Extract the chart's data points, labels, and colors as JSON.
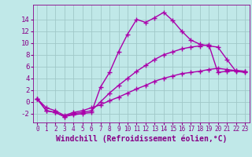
{
  "title": "",
  "xlabel": "Windchill (Refroidissement éolien,°C)",
  "ylabel": "",
  "bg_color": "#c0e8e8",
  "line_color": "#aa00aa",
  "grid_color": "#a0c8c8",
  "text_color": "#880088",
  "xlim": [
    -0.5,
    23.5
  ],
  "ylim": [
    -3.5,
    16.5
  ],
  "xticks": [
    0,
    1,
    2,
    3,
    4,
    5,
    6,
    7,
    8,
    9,
    10,
    11,
    12,
    13,
    14,
    15,
    16,
    17,
    18,
    19,
    20,
    21,
    22,
    23
  ],
  "yticks": [
    -2,
    0,
    2,
    4,
    6,
    8,
    10,
    12,
    14
  ],
  "line1_x": [
    0,
    1,
    2,
    3,
    4,
    5,
    6,
    7,
    8,
    9,
    10,
    11,
    12,
    13,
    14,
    15,
    16,
    17,
    18,
    19,
    20,
    21,
    22,
    23
  ],
  "line1_y": [
    0.5,
    -1.5,
    -1.8,
    -2.5,
    -2.2,
    -2.0,
    -1.8,
    2.5,
    5.0,
    8.5,
    11.5,
    14.0,
    13.5,
    14.3,
    15.2,
    13.8,
    12.0,
    10.5,
    9.8,
    9.5,
    9.3,
    7.2,
    5.2,
    5.0
  ],
  "line2_x": [
    0,
    1,
    2,
    3,
    4,
    5,
    6,
    7,
    8,
    9,
    10,
    11,
    12,
    13,
    14,
    15,
    16,
    17,
    18,
    19,
    20,
    21,
    22,
    23
  ],
  "line2_y": [
    0.5,
    -1.5,
    -1.8,
    -2.5,
    -2.0,
    -1.8,
    -1.5,
    0.0,
    1.5,
    2.8,
    4.0,
    5.2,
    6.2,
    7.2,
    8.0,
    8.5,
    9.0,
    9.3,
    9.5,
    9.7,
    5.0,
    5.2,
    5.3,
    5.2
  ],
  "line3_x": [
    0,
    1,
    2,
    3,
    4,
    5,
    6,
    7,
    8,
    9,
    10,
    11,
    12,
    13,
    14,
    15,
    16,
    17,
    18,
    19,
    20,
    21,
    22,
    23
  ],
  "line3_y": [
    0.5,
    -1.0,
    -1.5,
    -2.3,
    -1.8,
    -1.5,
    -1.0,
    -0.5,
    0.2,
    0.8,
    1.5,
    2.2,
    2.8,
    3.5,
    4.0,
    4.4,
    4.8,
    5.0,
    5.2,
    5.5,
    5.7,
    5.5,
    5.3,
    5.2
  ],
  "marker": "+",
  "marker_size": 4,
  "line_width": 1.0,
  "xlabel_fontsize": 7,
  "tick_fontsize": 6.5
}
